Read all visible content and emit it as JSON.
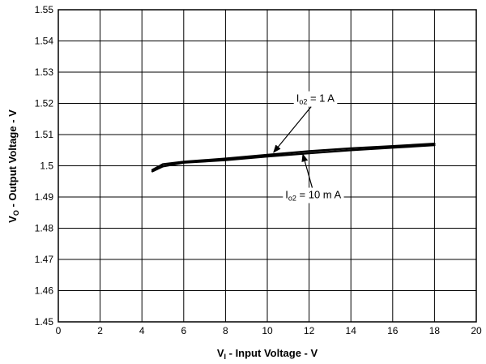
{
  "chart_data": {
    "type": "line",
    "xlabel": {
      "main": "V",
      "sub": "I",
      "rest": " - Input Voltage - V"
    },
    "ylabel": {
      "main": "V",
      "sub": "O",
      "rest": " - Output Voltage - V"
    },
    "xlim": [
      0,
      20
    ],
    "ylim": [
      1.45,
      1.55
    ],
    "xticks": [
      "0",
      "2",
      "4",
      "6",
      "8",
      "10",
      "12",
      "14",
      "16",
      "18",
      "20"
    ],
    "yticks": [
      "1.45",
      "1.46",
      "1.47",
      "1.48",
      "1.49",
      "1.5",
      "1.51",
      "1.52",
      "1.53",
      "1.54",
      "1.55"
    ],
    "grid": true,
    "series": [
      {
        "x": [
          4.5,
          5,
          6,
          8,
          10,
          12,
          14,
          16,
          18
        ],
        "values": [
          1.4987,
          1.5005,
          1.5013,
          1.5023,
          1.5035,
          1.5047,
          1.5056,
          1.5063,
          1.5071
        ]
      },
      {
        "x": [
          4.5,
          5,
          6,
          8,
          10,
          12,
          14,
          16,
          18
        ],
        "values": [
          1.4982,
          1.4998,
          1.501,
          1.5018,
          1.503,
          1.504,
          1.505,
          1.5058,
          1.5066
        ]
      }
    ],
    "annotations": [
      {
        "main": "I",
        "sub": "o2",
        "rest": " = 1 A",
        "x": 12.3,
        "y": 1.5205,
        "arrow_to_x": 10.3,
        "arrow_to_y": 1.5043
      },
      {
        "main": "I",
        "sub": "o2",
        "rest": " = 10 m A",
        "x": 12.2,
        "y": 1.4896,
        "arrow_to_x": 11.7,
        "arrow_to_y": 1.5037
      }
    ]
  }
}
